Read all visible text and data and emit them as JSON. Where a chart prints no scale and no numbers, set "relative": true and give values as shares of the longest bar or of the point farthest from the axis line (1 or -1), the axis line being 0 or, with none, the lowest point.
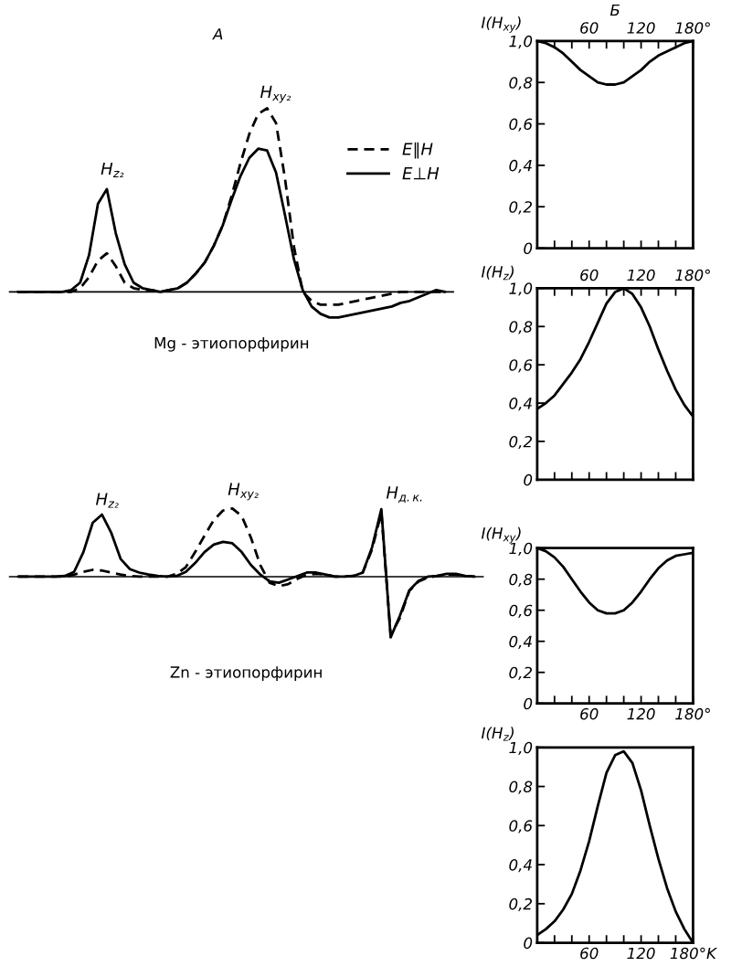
{
  "chart_data": [
    {
      "type": "line",
      "title": "A",
      "xlabel": "Mg - этиопорфирин",
      "relative": true,
      "legend": "top right",
      "categories": [
        null,
        null,
        null,
        null,
        null,
        null,
        null,
        null,
        null,
        null,
        null,
        null,
        null,
        null,
        null,
        null,
        null,
        null,
        null,
        null,
        null,
        null,
        null,
        null,
        null,
        null,
        null,
        null,
        null,
        null,
        null,
        null,
        null,
        null,
        null,
        null,
        null,
        null,
        null,
        null,
        null,
        null,
        null,
        null,
        null,
        null,
        null,
        null,
        null
      ],
      "annotations": [
        "H$_{z₂}$",
        "H$_{xy₂}$"
      ],
      "series": [
        {
          "name": "E∥H",
          "color": "#000000",
          "line_style": "dashed",
          "values": [
            0,
            0,
            0,
            0,
            0,
            0,
            0,
            0.02,
            0.08,
            0.17,
            0.21,
            0.14,
            0.05,
            0.02,
            0.01,
            0.01,
            0,
            0.01,
            0.02,
            0.05,
            0.1,
            0.16,
            0.25,
            0.36,
            0.52,
            0.7,
            0.86,
            0.97,
            1.0,
            0.92,
            0.62,
            0.25,
            0.0,
            -0.05,
            -0.07,
            -0.07,
            -0.07,
            -0.06,
            -0.05,
            -0.04,
            -0.03,
            -0.02,
            -0.01,
            0,
            0,
            0,
            0,
            0,
            0
          ]
        },
        {
          "name": "E⊥H",
          "color": "#000000",
          "line_style": "solid",
          "values": [
            0,
            0,
            0,
            0,
            0,
            0,
            0.01,
            0.05,
            0.2,
            0.48,
            0.56,
            0.32,
            0.15,
            0.05,
            0.02,
            0.01,
            0,
            0.01,
            0.02,
            0.05,
            0.1,
            0.16,
            0.25,
            0.36,
            0.5,
            0.63,
            0.73,
            0.78,
            0.77,
            0.65,
            0.42,
            0.18,
            0.01,
            -0.08,
            -0.12,
            -0.14,
            -0.14,
            -0.13,
            -0.12,
            -0.11,
            -0.1,
            -0.09,
            -0.08,
            -0.06,
            -0.05,
            -0.03,
            -0.01,
            0.01,
            0
          ]
        }
      ]
    },
    {
      "type": "line",
      "xlabel": "Zn - этиопорфирин",
      "relative": true,
      "categories": [
        null,
        null,
        null,
        null,
        null,
        null,
        null,
        null,
        null,
        null,
        null,
        null,
        null,
        null,
        null,
        null,
        null,
        null,
        null,
        null,
        null,
        null,
        null,
        null,
        null,
        null,
        null,
        null,
        null,
        null,
        null,
        null,
        null,
        null,
        null,
        null,
        null,
        null,
        null,
        null,
        null,
        null,
        null,
        null,
        null,
        null,
        null,
        null,
        null,
        null
      ],
      "annotations": [
        "H$_{z₂}$",
        "H$_{xy₂}$",
        "H$_{д.к.}$"
      ],
      "series": [
        {
          "color": "#000000",
          "line_style": "dashed",
          "values": [
            0,
            0,
            0,
            0,
            0,
            0,
            0.03,
            0.07,
            0.1,
            0.09,
            0.06,
            0.03,
            0.01,
            0,
            0,
            0,
            0,
            0.04,
            0.14,
            0.36,
            0.6,
            0.83,
            0.97,
            1.0,
            0.89,
            0.57,
            0.17,
            -0.09,
            -0.14,
            -0.11,
            -0.03,
            0.03,
            0.04,
            0.03,
            0,
            0,
            0.01,
            0.06,
            0.4,
            0.94,
            -0.86,
            -0.6,
            -0.21,
            -0.07,
            -0.01,
            0.01,
            0.03,
            0.03,
            0.01,
            0
          ]
        },
        {
          "color": "#000000",
          "line_style": "solid",
          "values": [
            0,
            0,
            0,
            0,
            0,
            0.01,
            0.07,
            0.36,
            0.79,
            0.91,
            0.64,
            0.26,
            0.11,
            0.06,
            0.03,
            0.01,
            0,
            0.01,
            0.07,
            0.2,
            0.36,
            0.47,
            0.51,
            0.49,
            0.36,
            0.17,
            0.03,
            -0.07,
            -0.09,
            -0.04,
            0.01,
            0.06,
            0.06,
            0.03,
            0,
            0,
            0.01,
            0.06,
            0.43,
            0.99,
            -0.89,
            -0.57,
            -0.2,
            -0.06,
            0,
            0.01,
            0.04,
            0.04,
            0.01,
            0
          ]
        }
      ]
    },
    {
      "type": "line",
      "title": "Б",
      "ylabel": "I(H$_{xy}$)",
      "x": [
        0,
        10,
        20,
        30,
        40,
        50,
        60,
        70,
        80,
        90,
        100,
        110,
        120,
        130,
        140,
        150,
        160,
        170,
        180
      ],
      "xlim": [
        0,
        180
      ],
      "xticks": [
        {
          "value": 20,
          "label": null
        },
        {
          "value": 40,
          "label": null
        },
        60,
        {
          "value": 80,
          "label": null
        },
        {
          "value": 100,
          "label": null
        },
        120,
        {
          "value": 140,
          "label": null
        },
        {
          "value": 160,
          "label": null
        },
        {
          "value": 180,
          "label": "180°"
        }
      ],
      "ylim": [
        0,
        1
      ],
      "yticks": [
        0,
        {
          "value": 0.2,
          "label": "0,2"
        },
        {
          "value": 0.4,
          "label": "0,4"
        },
        {
          "value": 0.6,
          "label": "0,6"
        },
        {
          "value": 0.8,
          "label": "0,8"
        },
        {
          "value": 1.0,
          "label": "1,0"
        }
      ],
      "series": [
        {
          "color": "#000000",
          "values": [
            1.0,
            0.99,
            0.97,
            0.94,
            0.9,
            0.86,
            0.83,
            0.8,
            0.79,
            0.79,
            0.8,
            0.83,
            0.86,
            0.9,
            0.93,
            0.95,
            0.97,
            0.99,
            1.0
          ]
        }
      ]
    },
    {
      "type": "line",
      "ylabel": "I(H$_{z}$)",
      "x": [
        0,
        10,
        20,
        30,
        40,
        50,
        60,
        70,
        80,
        90,
        100,
        110,
        120,
        130,
        140,
        150,
        160,
        170,
        180
      ],
      "xlim": [
        0,
        180
      ],
      "xticks": [
        {
          "value": 20,
          "label": null
        },
        {
          "value": 40,
          "label": null
        },
        60,
        {
          "value": 80,
          "label": null
        },
        {
          "value": 100,
          "label": null
        },
        120,
        {
          "value": 140,
          "label": null
        },
        {
          "value": 160,
          "label": null
        },
        {
          "value": 180,
          "label": "180°"
        }
      ],
      "ylim": [
        0,
        1
      ],
      "yticks": [
        0,
        {
          "value": 0.2,
          "label": "0,2"
        },
        {
          "value": 0.4,
          "label": "0,4"
        },
        {
          "value": 0.6,
          "label": "0,6"
        },
        {
          "value": 0.8,
          "label": "0,8"
        },
        {
          "value": 1.0,
          "label": "1,0"
        }
      ],
      "series": [
        {
          "color": "#000000",
          "values": [
            0.37,
            0.4,
            0.44,
            0.5,
            0.56,
            0.63,
            0.72,
            0.82,
            0.92,
            0.98,
            1.0,
            0.97,
            0.9,
            0.8,
            0.68,
            0.57,
            0.47,
            0.39,
            0.33
          ]
        }
      ]
    },
    {
      "type": "line",
      "ylabel": "I(H$_{xy}$)",
      "x": [
        0,
        10,
        20,
        30,
        40,
        50,
        60,
        70,
        80,
        90,
        100,
        110,
        120,
        130,
        140,
        150,
        160,
        170,
        180
      ],
      "xlim": [
        0,
        180
      ],
      "xticks": [
        {
          "value": 20,
          "label": null
        },
        {
          "value": 40,
          "label": null
        },
        60,
        {
          "value": 80,
          "label": null
        },
        {
          "value": 100,
          "label": null
        },
        120,
        {
          "value": 140,
          "label": null
        },
        {
          "value": 160,
          "label": null
        },
        {
          "value": 180,
          "label": "180°"
        }
      ],
      "ylim": [
        0,
        1
      ],
      "yticks": [
        0,
        {
          "value": 0.2,
          "label": "0,2"
        },
        {
          "value": 0.4,
          "label": "0,4"
        },
        {
          "value": 0.6,
          "label": "0,6"
        },
        {
          "value": 0.8,
          "label": "0,8"
        },
        {
          "value": 1.0,
          "label": "1,0"
        }
      ],
      "series": [
        {
          "color": "#000000",
          "values": [
            1.0,
            0.98,
            0.94,
            0.88,
            0.8,
            0.72,
            0.65,
            0.6,
            0.58,
            0.58,
            0.6,
            0.65,
            0.72,
            0.8,
            0.87,
            0.92,
            0.95,
            0.96,
            0.97
          ]
        }
      ]
    },
    {
      "type": "line",
      "ylabel": "I(H$_{z}$)",
      "x": [
        0,
        10,
        20,
        30,
        40,
        50,
        60,
        70,
        80,
        90,
        100,
        110,
        120,
        130,
        140,
        150,
        160,
        170,
        180
      ],
      "xlim": [
        0,
        180
      ],
      "xticks": [
        {
          "value": 20,
          "label": null
        },
        {
          "value": 40,
          "label": null
        },
        60,
        {
          "value": 80,
          "label": null
        },
        {
          "value": 100,
          "label": null
        },
        120,
        {
          "value": 140,
          "label": null
        },
        {
          "value": 160,
          "label": null
        },
        {
          "value": 180,
          "label": "180°K"
        }
      ],
      "ylim": [
        0,
        1
      ],
      "yticks": [
        0,
        {
          "value": 0.2,
          "label": "0,2"
        },
        {
          "value": 0.4,
          "label": "0,4"
        },
        {
          "value": 0.6,
          "label": "0,6"
        },
        {
          "value": 0.8,
          "label": "0,8"
        },
        {
          "value": 1.0,
          "label": "1,0"
        }
      ],
      "series": [
        {
          "color": "#000000",
          "values": [
            0.04,
            0.07,
            0.11,
            0.17,
            0.25,
            0.37,
            0.52,
            0.7,
            0.87,
            0.96,
            0.98,
            0.92,
            0.78,
            0.6,
            0.43,
            0.28,
            0.16,
            0.07,
            0.0
          ]
        }
      ]
    }
  ]
}
